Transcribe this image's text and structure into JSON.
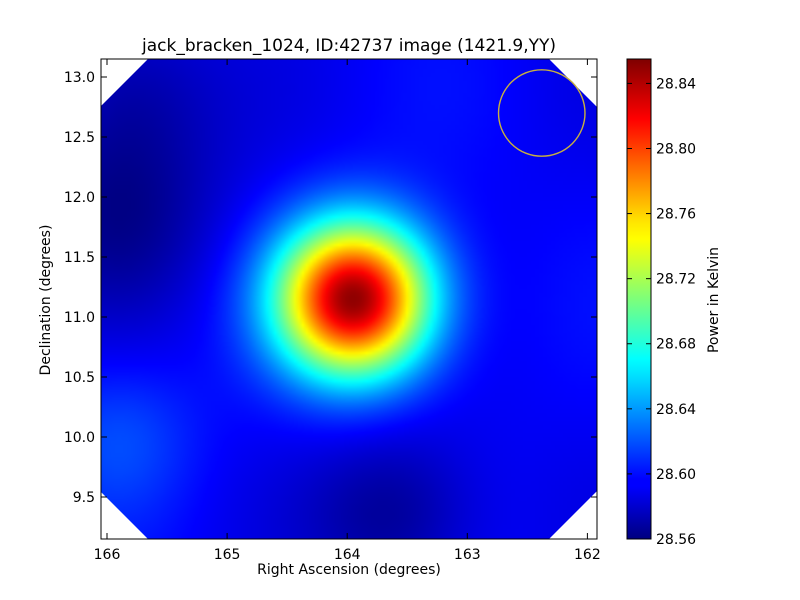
{
  "chart_data": {
    "type": "heatmap",
    "title": "jack_bracken_1024, ID:42737 image (1421.9,YY)",
    "xlabel": "Right Ascension (degrees)",
    "ylabel": "Declination (degrees)",
    "colorbar_label": "Power in Kelvin",
    "xlim": [
      166.05,
      161.92
    ],
    "ylim": [
      9.15,
      13.15
    ],
    "xticks": [
      166,
      165,
      164,
      163,
      162
    ],
    "yticks": [
      9.5,
      10.0,
      10.5,
      11.0,
      11.5,
      12.0,
      12.5,
      13.0
    ],
    "xtick_labels": [
      "166",
      "165",
      "164",
      "163",
      "162"
    ],
    "ytick_labels": [
      "9.5",
      "10.0",
      "10.5",
      "11.0",
      "11.5",
      "12.0",
      "12.5",
      "13.0"
    ],
    "colorbar_range": [
      28.56,
      28.855
    ],
    "colorbar_ticks": [
      28.56,
      28.6,
      28.64,
      28.68,
      28.72,
      28.76,
      28.8,
      28.84
    ],
    "colorbar_tick_labels": [
      "28.56",
      "28.60",
      "28.64",
      "28.68",
      "28.72",
      "28.76",
      "28.80",
      "28.84"
    ],
    "colormap": "jet",
    "background_level": 28.595,
    "features": [
      {
        "kind": "peak",
        "ra": 163.94,
        "dec": 11.15,
        "amplitude": 0.255,
        "sigma": 0.45
      },
      {
        "kind": "dip",
        "ra": 165.9,
        "dec": 11.9,
        "amplitude": -0.03,
        "sigma": 0.6
      },
      {
        "kind": "dip",
        "ra": 165.8,
        "dec": 12.9,
        "amplitude": -0.02,
        "sigma": 0.5
      },
      {
        "kind": "dip",
        "ra": 163.6,
        "dec": 9.35,
        "amplitude": -0.03,
        "sigma": 0.5
      },
      {
        "kind": "bump",
        "ra": 165.9,
        "dec": 10.0,
        "amplitude": 0.022,
        "sigma": 0.45
      }
    ],
    "beam_circle": {
      "ra": 162.38,
      "dec": 12.7,
      "radius_deg": 0.36,
      "color": "#c8b040"
    },
    "blank_corners": true,
    "grid": false
  }
}
